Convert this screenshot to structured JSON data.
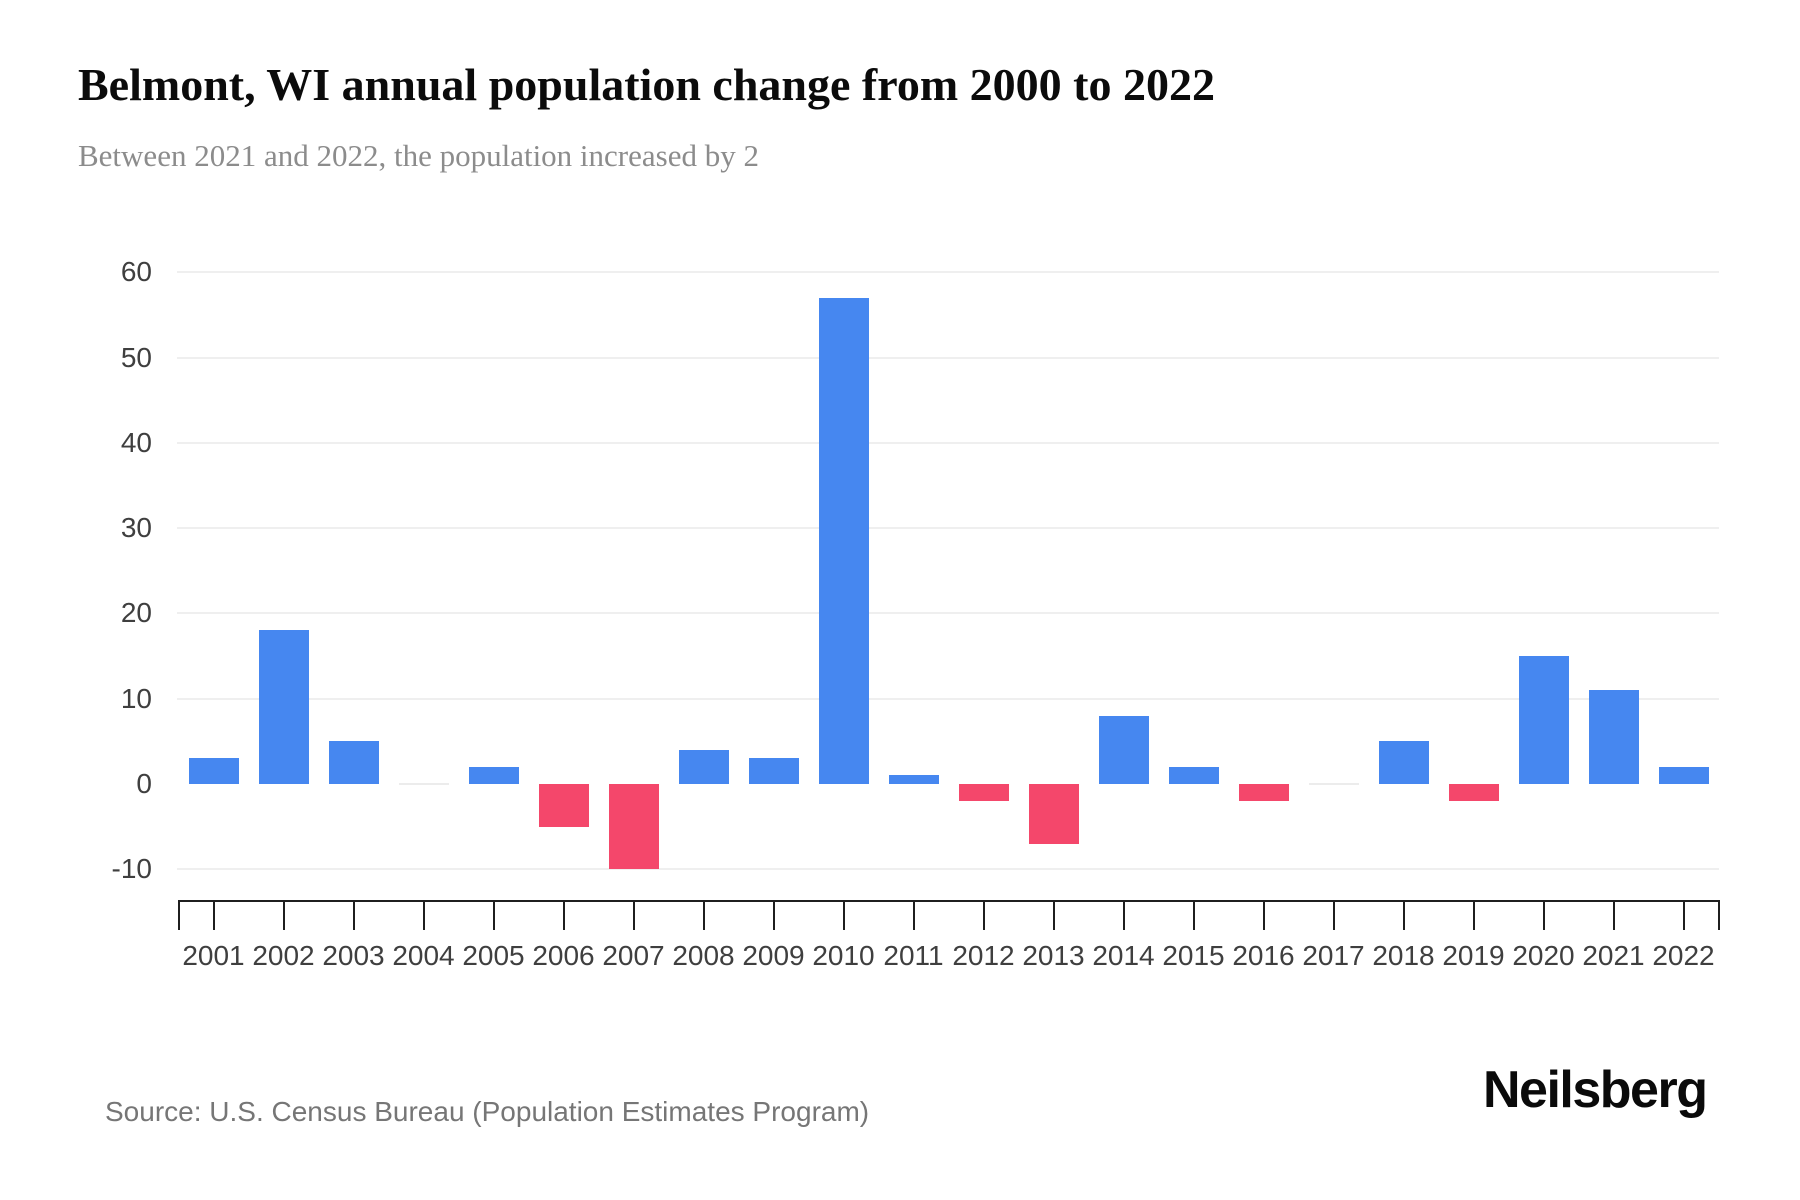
{
  "header": {
    "title": "Belmont, WI annual population change from 2000 to 2022",
    "subtitle": "Between 2021 and 2022, the population increased by 2"
  },
  "chart_data": {
    "type": "bar",
    "title": "Belmont, WI annual population change from 2000 to 2022",
    "subtitle": "Between 2021 and 2022, the population increased by 2",
    "categories": [
      "2001",
      "2002",
      "2003",
      "2004",
      "2005",
      "2006",
      "2007",
      "2008",
      "2009",
      "2010",
      "2011",
      "2012",
      "2013",
      "2014",
      "2015",
      "2016",
      "2017",
      "2018",
      "2019",
      "2020",
      "2021",
      "2022"
    ],
    "values": [
      3,
      18,
      5,
      0,
      2,
      -5,
      -10,
      4,
      3,
      57,
      1,
      -2,
      -7,
      8,
      2,
      -2,
      0,
      5,
      -2,
      15,
      11,
      2
    ],
    "xlabel": "",
    "ylabel": "",
    "ylim": [
      -10,
      60
    ],
    "yticks": [
      60,
      50,
      40,
      30,
      20,
      10,
      0,
      -10
    ],
    "gridline_values": [
      60,
      50,
      40,
      30,
      20,
      10,
      -10
    ],
    "grid": "horizontal",
    "legend": "none",
    "colors": {
      "positive_bar": "#4687F0",
      "negative_bar": "#F4476B",
      "zero_bar": "#ECECEC",
      "gridline": "#EFEFEF",
      "axis": "#1F1F1F",
      "axis_label": "#3F3F3F",
      "title": "#0B0B0B",
      "subtitle": "#8C8C8C",
      "source": "#767676"
    }
  },
  "footer": {
    "source": "Source: U.S. Census Bureau (Population Estimates Program)",
    "brand": "Neilsberg"
  }
}
